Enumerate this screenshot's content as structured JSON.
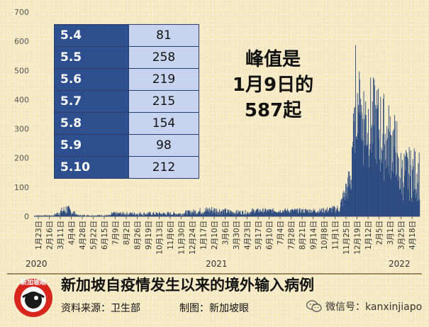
{
  "chart_data": {
    "type": "bar",
    "title": "新加坡自疫情发生以来的境外输入病例",
    "ylim": [
      0,
      700
    ],
    "yticks": [
      0,
      100,
      200,
      300,
      400,
      500,
      600,
      700
    ],
    "xticks": [
      "1月23日",
      "2月16日",
      "3月11日",
      "4月4日",
      "4月28日",
      "5月22日",
      "6月15日",
      "7月9日",
      "8月2日",
      "8月26日",
      "9月19日",
      "10月13日",
      "11月6日",
      "11月30日",
      "12月24日",
      "1月17日",
      "2月10日",
      "3月6日",
      "3月30日",
      "4月23日",
      "5月17日",
      "6月10日",
      "7月4日",
      "7月28日",
      "8月21日",
      "9月14日",
      "10月8日",
      "11月1日",
      "11月25日",
      "12月19日",
      "1月12日",
      "2月5日",
      "3月1日",
      "3月25日",
      "4月18日"
    ],
    "years": [
      "2020",
      "2021",
      "2022"
    ],
    "daily_approx": [
      {
        "period": "2020-01 to 2020-03",
        "range": [
          0,
          5
        ]
      },
      {
        "period": "2020-03 to 2020-04",
        "range": [
          10,
          45
        ]
      },
      {
        "period": "2020-05 to 2020-12",
        "range": [
          0,
          15
        ]
      },
      {
        "period": "2021-01 to 2021-11",
        "range": [
          5,
          40
        ]
      },
      {
        "period": "2021-12",
        "range": [
          20,
          100
        ]
      },
      {
        "period": "2022-01",
        "range": [
          200,
          587
        ]
      },
      {
        "period": "2022-02 to 2022-03",
        "range": [
          100,
          450
        ]
      },
      {
        "period": "2022-04 to 2022-05",
        "range": [
          50,
          250
        ]
      }
    ],
    "peak": {
      "date": "1月9日",
      "value": 587
    },
    "color": "#2b4a80"
  },
  "table": {
    "rows": [
      {
        "date": "5.4",
        "value": "81"
      },
      {
        "date": "5.5",
        "value": "258"
      },
      {
        "date": "5.6",
        "value": "219"
      },
      {
        "date": "5.7",
        "value": "215"
      },
      {
        "date": "5.8",
        "value": "154"
      },
      {
        "date": "5.9",
        "value": "98"
      },
      {
        "date": "5.10",
        "value": "212"
      }
    ]
  },
  "peak_annotation": {
    "line1": "峰值是",
    "line2": "1月9日的",
    "line3": "587起"
  },
  "footer": {
    "title": "新加坡自疫情发生以来的境外输入病例",
    "source": "资料来源：卫生部",
    "credit": "制图：新加坡眼",
    "wechat": "微信号：kanxinjiapo",
    "logo_text": "新加坡眼"
  }
}
